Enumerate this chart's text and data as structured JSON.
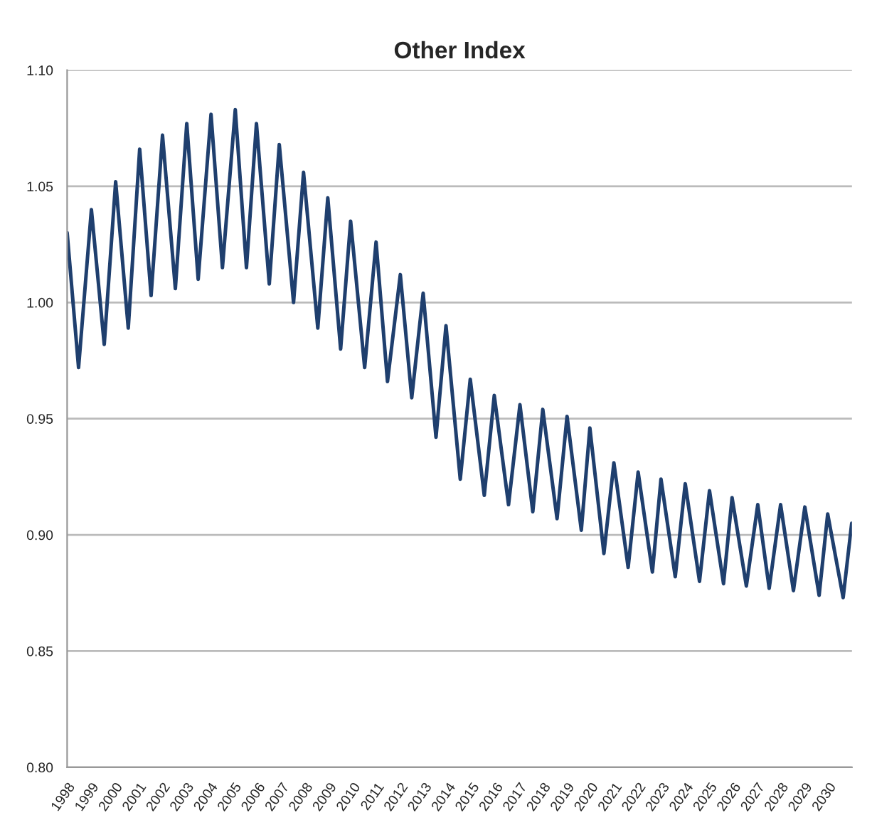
{
  "chart_data": {
    "type": "line",
    "title": "Other Index",
    "series": [
      {
        "color": "#1f3f6e",
        "x": [
          1998.0,
          1998.48,
          1999.02,
          1999.56,
          2000.04,
          2000.57,
          2001.05,
          2001.53,
          2002.01,
          2002.55,
          2003.03,
          2003.51,
          2004.05,
          2004.53,
          2005.07,
          2005.54,
          2005.96,
          2006.5,
          2006.92,
          2007.52,
          2007.94,
          2008.54,
          2008.96,
          2009.5,
          2009.92,
          2010.51,
          2010.99,
          2011.47,
          2012.01,
          2012.49,
          2012.97,
          2013.51,
          2013.93,
          2014.53,
          2014.95,
          2015.54,
          2015.96,
          2016.56,
          2017.04,
          2017.58,
          2018.0,
          2018.6,
          2019.02,
          2019.62,
          2019.98,
          2020.57,
          2020.99,
          2021.59,
          2022.01,
          2022.61,
          2022.97,
          2023.57,
          2023.99,
          2024.59,
          2025.01,
          2025.6,
          2025.96,
          2026.56,
          2027.04,
          2027.52,
          2028.0,
          2028.54,
          2029.02,
          2029.62,
          2029.98,
          2030.63,
          2030.99
        ],
        "values": [
          1.03,
          0.972,
          1.04,
          0.982,
          1.052,
          0.989,
          1.066,
          1.003,
          1.072,
          1.006,
          1.077,
          1.01,
          1.081,
          1.015,
          1.083,
          1.015,
          1.077,
          1.008,
          1.068,
          1.0,
          1.056,
          0.989,
          1.045,
          0.98,
          1.035,
          0.972,
          1.026,
          0.966,
          1.012,
          0.959,
          1.004,
          0.942,
          0.99,
          0.924,
          0.967,
          0.917,
          0.96,
          0.913,
          0.956,
          0.91,
          0.954,
          0.907,
          0.951,
          0.902,
          0.946,
          0.892,
          0.931,
          0.886,
          0.927,
          0.884,
          0.924,
          0.882,
          0.922,
          0.88,
          0.919,
          0.879,
          0.916,
          0.878,
          0.913,
          0.877,
          0.913,
          0.876,
          0.912,
          0.874,
          0.909,
          0.873,
          0.905
        ]
      }
    ],
    "xlim": [
      1998,
      2031
    ],
    "xticks": [
      1998,
      1999,
      2000,
      2001,
      2002,
      2003,
      2004,
      2005,
      2006,
      2007,
      2008,
      2009,
      2010,
      2011,
      2012,
      2013,
      2014,
      2015,
      2016,
      2017,
      2018,
      2019,
      2020,
      2021,
      2022,
      2023,
      2024,
      2025,
      2026,
      2027,
      2028,
      2029,
      2030
    ],
    "ylim": [
      0.8,
      1.1
    ],
    "yticks": [
      {
        "value": 0.8,
        "label": "0.80"
      },
      {
        "value": 0.85,
        "label": "0.85"
      },
      {
        "value": 0.9,
        "label": "0.90"
      },
      {
        "value": 0.95,
        "label": "0.95"
      },
      {
        "value": 1.0,
        "label": "1.00"
      },
      {
        "value": 1.05,
        "label": "1.05"
      },
      {
        "value": 1.1,
        "label": "1.10"
      }
    ],
    "grid": "y",
    "line_style": "solid",
    "marker": "none"
  }
}
